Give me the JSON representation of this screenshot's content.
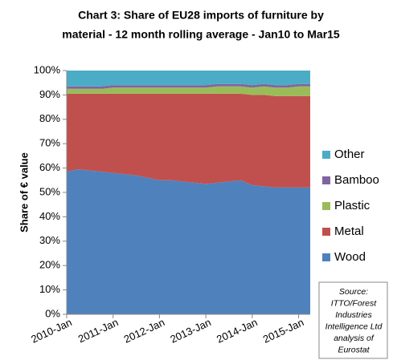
{
  "chart_data": {
    "type": "stacked_area",
    "title": [
      "Chart 3: Share of EU28 imports of furniture by",
      "material - 12 month rolling average - Jan10 to Mar15"
    ],
    "ylabel": "Share of € value",
    "source": [
      "Source:",
      "ITTO/Forest",
      "Industries",
      "Intelligence Ltd",
      "analysis of",
      "Eurostat"
    ],
    "categories": [
      "2010-Jan",
      null,
      null,
      null,
      "2011-Jan",
      null,
      null,
      null,
      "2012-Jan",
      null,
      null,
      null,
      "2013-Jan",
      null,
      null,
      null,
      "2014-Jan",
      null,
      null,
      null,
      "2015-Jan",
      null
    ],
    "series": [
      {
        "name": "Wood",
        "color": "#4f81bd",
        "values": [
          58.5,
          59.5,
          59,
          58.5,
          58,
          57.5,
          57,
          56,
          55,
          55,
          54.5,
          54,
          53.5,
          54,
          54.5,
          55,
          53,
          52.5,
          52,
          52,
          52,
          52
        ]
      },
      {
        "name": "Metal",
        "color": "#c0504d",
        "values": [
          32,
          31,
          31.5,
          32,
          32.5,
          33,
          33.5,
          34.5,
          35.5,
          35.5,
          36,
          36.5,
          37,
          36.5,
          36,
          35.5,
          37,
          37.5,
          37.5,
          37.5,
          37.5,
          37.5
        ]
      },
      {
        "name": "Plastic",
        "color": "#9bbb59",
        "values": [
          2,
          2,
          2,
          2,
          2.5,
          2.5,
          2.5,
          2.5,
          2.5,
          2.5,
          2.5,
          2.5,
          2.5,
          3,
          3,
          3,
          3,
          3.5,
          3.5,
          3.5,
          4,
          4
        ]
      },
      {
        "name": "Bamboo",
        "color": "#8064a2",
        "values": [
          1,
          1,
          1,
          1,
          1,
          1,
          1,
          1,
          1,
          1,
          1,
          1,
          1,
          1,
          1,
          1,
          1,
          1,
          1,
          1,
          1,
          1
        ]
      },
      {
        "name": "Other",
        "color": "#4bacc6",
        "values": [
          6.5,
          6.5,
          6.5,
          6.5,
          6,
          6,
          6,
          6,
          6,
          6,
          6,
          6,
          6,
          5.5,
          5.5,
          5.5,
          6,
          5.5,
          6,
          6,
          5.5,
          5.5
        ]
      }
    ],
    "ylim": [
      0,
      100
    ],
    "yticks": [
      {
        "value": 0,
        "label": "0%"
      },
      {
        "value": 10,
        "label": "10%"
      },
      {
        "value": 20,
        "label": "20%"
      },
      {
        "value": 30,
        "label": "30%"
      },
      {
        "value": 40,
        "label": "40%"
      },
      {
        "value": 50,
        "label": "50%"
      },
      {
        "value": 60,
        "label": "60%"
      },
      {
        "value": 70,
        "label": "70%"
      },
      {
        "value": 80,
        "label": "80%"
      },
      {
        "value": 90,
        "label": "90%"
      },
      {
        "value": 100,
        "label": "100%"
      }
    ],
    "grid": false,
    "legend": "right"
  }
}
